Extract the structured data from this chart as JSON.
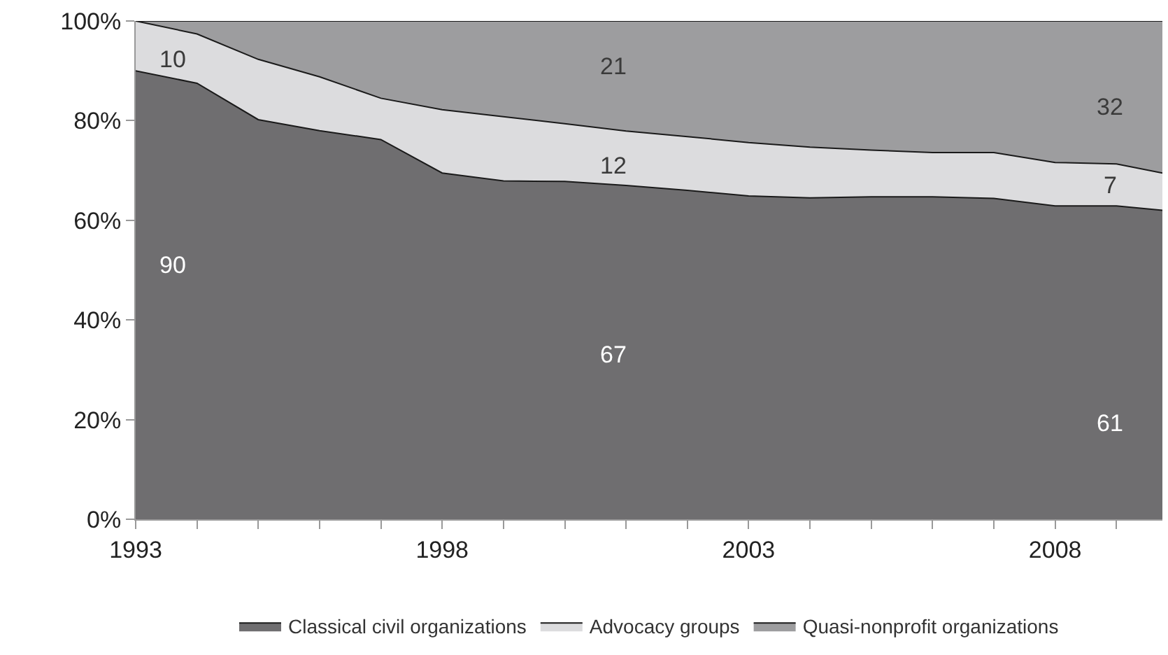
{
  "chart_data": {
    "type": "area",
    "stacked": true,
    "x": [
      1993,
      1994,
      1995,
      1996,
      1997,
      1998,
      1999,
      2000,
      2001,
      2002,
      2003,
      2004,
      2005,
      2006,
      2007,
      2008,
      2009,
      2009.75
    ],
    "series": [
      {
        "name": "Classical civil organizations",
        "color": "#6f6e70",
        "values": [
          90,
          87.5,
          80.2,
          78,
          76.2,
          69.5,
          67.9,
          67.8,
          67,
          66,
          64.9,
          64.5,
          64.7,
          64.7,
          64.4,
          62.9,
          62.9,
          62
        ]
      },
      {
        "name": "Advocacy groups",
        "color": "#dcdcde",
        "values": [
          10,
          9.9,
          12.1,
          10.8,
          8.3,
          12.7,
          12.9,
          11.6,
          10.9,
          10.8,
          10.7,
          10.2,
          9.4,
          8.9,
          9.2,
          8.7,
          8.4,
          7.5
        ]
      },
      {
        "name": "Quasi-nonprofit organizations",
        "color": "#9d9d9f",
        "values": [
          0,
          2.6,
          7.7,
          11.2,
          15.5,
          17.8,
          19.2,
          20.6,
          22.1,
          23.2,
          24.4,
          25.3,
          25.9,
          26.4,
          26.4,
          28.4,
          28.7,
          30.5
        ]
      }
    ],
    "xlim": [
      1993,
      2009.75
    ],
    "xticks": [
      1993,
      {
        "value": 1994,
        "label": null
      },
      {
        "value": 1995,
        "label": null
      },
      {
        "value": 1996,
        "label": null
      },
      {
        "value": 1997,
        "label": null
      },
      1998,
      {
        "value": 1999,
        "label": null
      },
      {
        "value": 2000,
        "label": null
      },
      {
        "value": 2001,
        "label": null
      },
      {
        "value": 2002,
        "label": null
      },
      2003,
      {
        "value": 2004,
        "label": null
      },
      {
        "value": 2005,
        "label": null
      },
      {
        "value": 2006,
        "label": null
      },
      {
        "value": 2007,
        "label": null
      },
      2008,
      {
        "value": 2009,
        "label": null
      }
    ],
    "ylim": [
      0,
      100
    ],
    "yticks": [
      {
        "value": 0,
        "label": "0%"
      },
      {
        "value": 20,
        "label": "20%"
      },
      {
        "value": 40,
        "label": "40%"
      },
      {
        "value": 60,
        "label": "60%"
      },
      {
        "value": 80,
        "label": "80%"
      },
      {
        "value": 100,
        "label": "100%"
      }
    ],
    "legend": "bottom",
    "annotations": [
      "10",
      "90",
      "21",
      "12",
      "67",
      "32",
      "7",
      "61"
    ]
  }
}
